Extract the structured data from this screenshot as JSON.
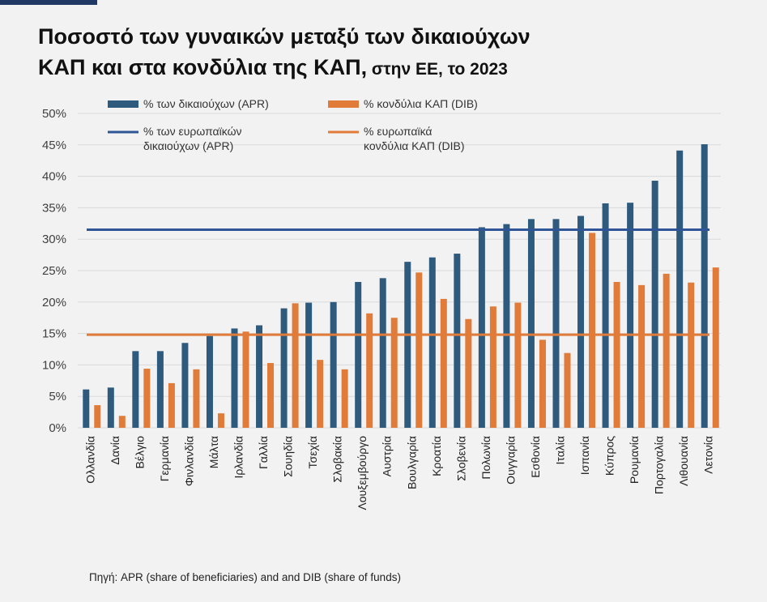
{
  "title": {
    "line1": "Ποσοστό των γυναικών μεταξύ των δικαιούχων",
    "line2_main": "ΚΑΠ και στα κονδύλια της ΚΑΠ,",
    "line2_suffix": " στην ΕΕ, το 2023"
  },
  "source": "Πηγή: APR (share of beneficiaries) and  and DIB (share of funds)",
  "colors": {
    "apr": "#2e5b7d",
    "dib": "#e07b39",
    "eu_apr": "#2f5597",
    "eu_dib": "#e07b39",
    "grid": "#d9d9d9",
    "axis_text": "#404040"
  },
  "legend": {
    "apr_bar": "% των δικαιούχων (APR)",
    "dib_bar": "% κονδύλια ΚΑΠ (DIB)",
    "eu_apr_line": [
      "% των ευρωπαϊκών",
      "δικαιούχων (APR)"
    ],
    "eu_dib_line": [
      "% ευρωπαϊκά",
      "κονδύλια ΚΑΠ (DIB)"
    ]
  },
  "chart_data": {
    "type": "bar",
    "title": "Ποσοστό των γυναικών μεταξύ των δικαιούχων ΚΑΠ και στα κονδύλια της ΚΑΠ, στην ΕΕ, το 2023",
    "categories": [
      "Ολλανδία",
      "Δανία",
      "Βέλγιο",
      "Γερμανία",
      "Φινλανδία",
      "Μάλτα",
      "Ιρλανδία",
      "Γαλλία",
      "Σουηδία",
      "Τσεχία",
      "Σλοβακία",
      "Λουξεμβούργο",
      "Αυστρία",
      "Βουλγαρία",
      "Κροατία",
      "Σλοβενία",
      "Πολωνία",
      "Ουγγαρία",
      "Εσθονία",
      "Ιταλία",
      "Ισπανία",
      "Κύπρος",
      "Ρουμανία",
      "Πορτογαλία",
      "Λιθουανία",
      "Λετονία"
    ],
    "series": [
      {
        "name": "% των δικαιούχων (APR)",
        "values": [
          6.1,
          6.4,
          12.2,
          12.2,
          13.5,
          14.6,
          15.8,
          16.3,
          19.0,
          19.9,
          20.0,
          23.2,
          23.8,
          26.4,
          27.1,
          27.7,
          31.9,
          32.4,
          33.2,
          33.2,
          33.7,
          35.7,
          35.8,
          39.3,
          44.1,
          45.1
        ]
      },
      {
        "name": "% κονδύλια ΚΑΠ (DIB)",
        "values": [
          3.6,
          1.9,
          9.4,
          7.1,
          9.3,
          2.3,
          15.3,
          10.3,
          19.8,
          10.8,
          9.3,
          18.2,
          17.5,
          24.7,
          20.5,
          17.3,
          19.3,
          19.9,
          14.0,
          11.9,
          31.0,
          23.2,
          22.7,
          24.5,
          23.1,
          25.5
        ]
      }
    ],
    "reference_lines": [
      {
        "name": "% των ευρωπαϊκών δικαιούχων (APR)",
        "value": 31.5
      },
      {
        "name": "% ευρωπαϊκά κονδύλια ΚΑΠ (DIB)",
        "value": 14.8
      }
    ],
    "ylim": [
      0,
      50
    ],
    "yticks": [
      0,
      5,
      10,
      15,
      20,
      25,
      30,
      35,
      40,
      45,
      50
    ],
    "ytick_format": "%",
    "xlabel": "",
    "ylabel": "",
    "grid": true,
    "legend_position": "top-left"
  }
}
